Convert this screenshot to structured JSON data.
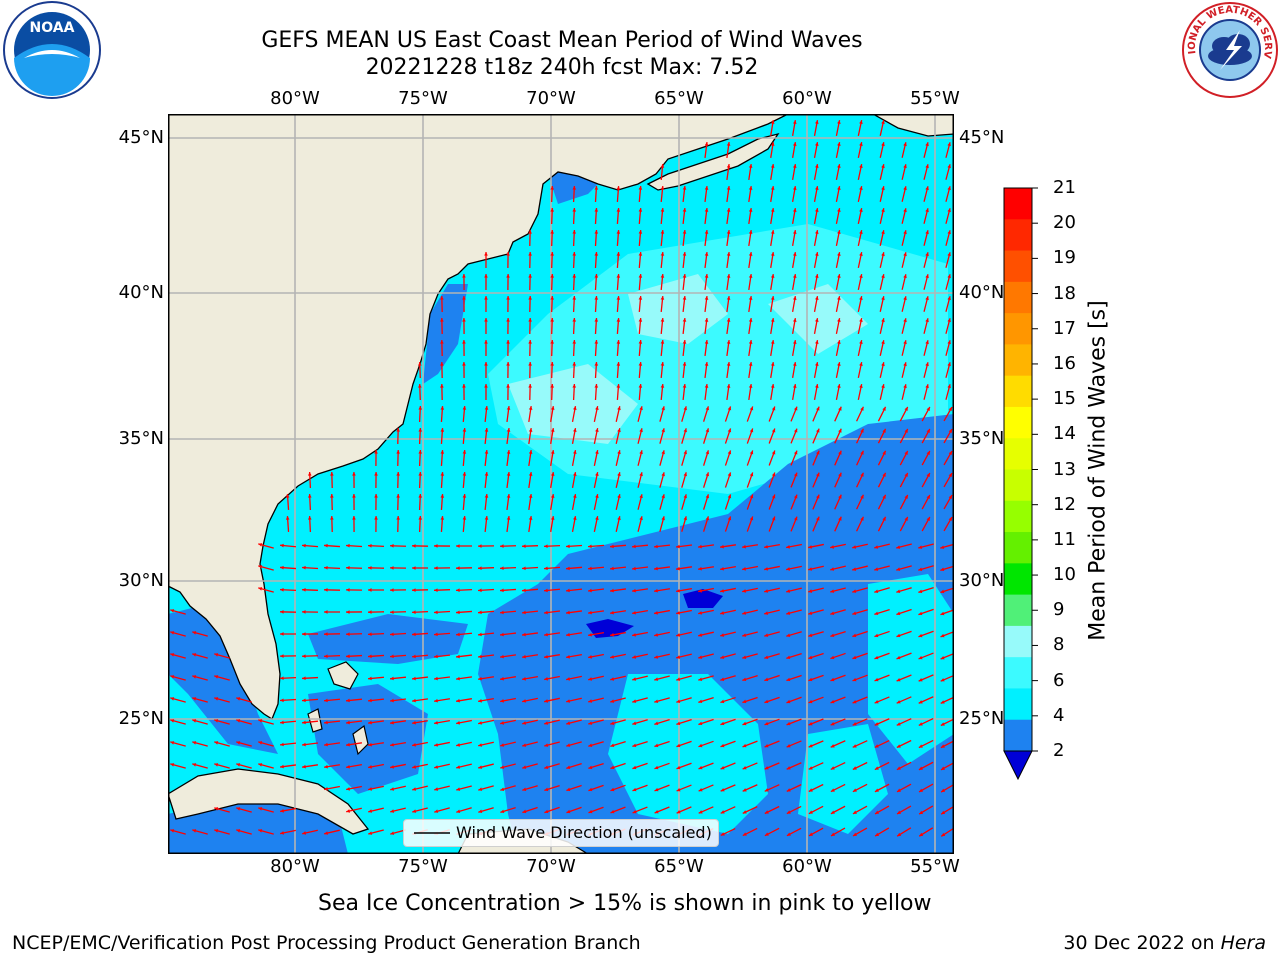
{
  "header": {
    "title_line1": "GEFS MEAN US East Coast Mean Period of Wind Waves",
    "title_line2": "20221228 t18z 240h fcst   Max: 7.52"
  },
  "logos": {
    "noaa": {
      "text": "NOAA",
      "ring_text": "NATIONAL OCEANIC AND ATMOSPHERIC ADMINISTRATION · U.S. DEPARTMENT OF COMMERCE"
    },
    "nws": {
      "ring_text": "NATIONAL WEATHER SERVICE"
    }
  },
  "map": {
    "lon_labels": [
      "80°W",
      "75°W",
      "70°W",
      "65°W",
      "60°W",
      "55°W"
    ],
    "lat_labels": [
      "45°N",
      "40°N",
      "35°N",
      "30°N",
      "25°N"
    ],
    "legend_label": "Wind Wave Direction (unscaled)",
    "colors": {
      "land": "#efecdc",
      "period_2_4": "#1e82f0",
      "period_4_6": "#00f0ff",
      "period_6_8": "#3cfaff",
      "period_8_9": "#97fafa",
      "period_lt_2": "#0000d7",
      "arrow": "#ff0000",
      "grid": "#b4b4b4",
      "coast": "#000000"
    }
  },
  "colorbar": {
    "title": "Mean Period of Wind Waves [s]",
    "ticks": [
      "21",
      "20",
      "19",
      "18",
      "17",
      "16",
      "15",
      "14",
      "13",
      "12",
      "11",
      "10",
      "9",
      "8",
      "6",
      "4",
      "2"
    ],
    "colors": [
      "#ff0000",
      "#ff2800",
      "#ff5000",
      "#ff7800",
      "#ff9600",
      "#ffb400",
      "#ffdc00",
      "#ffff00",
      "#e6ff00",
      "#c8ff00",
      "#96ff00",
      "#64f000",
      "#00e600",
      "#50f078",
      "#97fafa",
      "#3cfaff",
      "#00f0ff",
      "#1e82f0"
    ],
    "under_color": "#0000d7"
  },
  "footer": {
    "note": "Sea Ice Concentration > 15% is shown in pink to yellow",
    "org": "NCEP/EMC/Verification Post Processing Product Generation Branch",
    "date": "30 Dec 2022 on",
    "host": "Hera"
  }
}
